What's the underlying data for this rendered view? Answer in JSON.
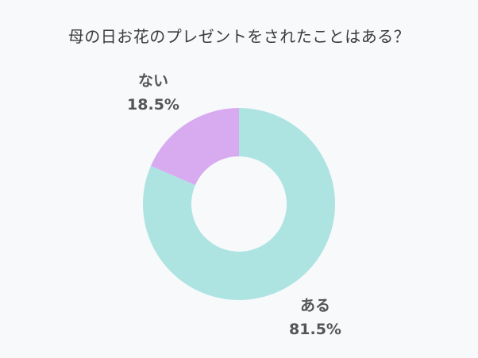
{
  "chart_data": {
    "type": "pie",
    "title": "母の日お花のプレゼントをされたことはある？",
    "slices": [
      {
        "label": "ある",
        "value": 81.5,
        "value_label": "81.5%",
        "color": "#ade4e2"
      },
      {
        "label": "ない",
        "value": 18.5,
        "value_label": "18.5%",
        "color": "#d8abf1"
      }
    ],
    "donut": true,
    "start_angle": "top (12 o'clock), clockwise",
    "legend": "none"
  }
}
